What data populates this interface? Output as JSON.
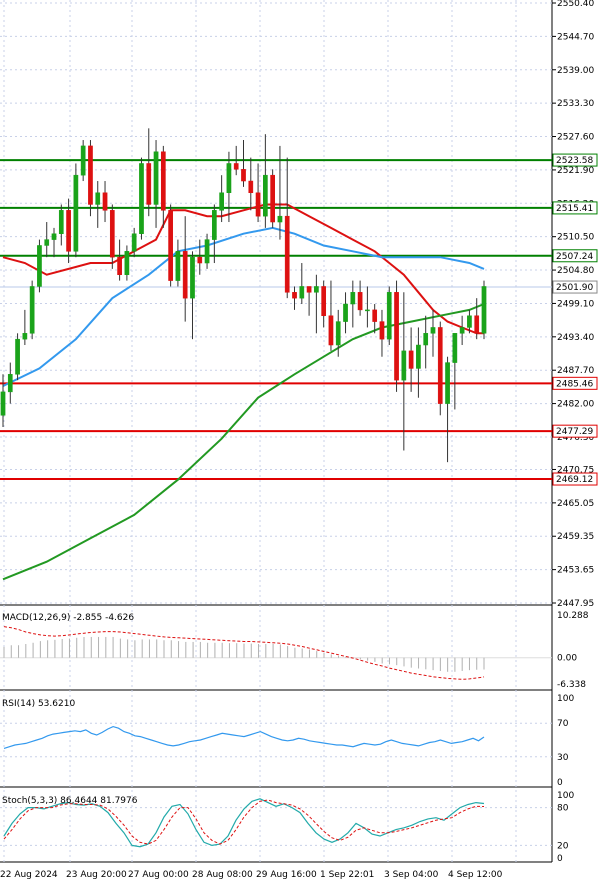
{
  "chart_data": [
    {
      "type": "candlestick",
      "panel": "price",
      "y_ticks": [
        "2550.40",
        "2544.70",
        "2539.00",
        "2533.30",
        "2527.60",
        "2521.90",
        "2516.20",
        "2510.50",
        "2504.80",
        "2499.10",
        "2493.40",
        "2487.70",
        "2482.00",
        "2476.30",
        "2470.75",
        "2465.05",
        "2459.35",
        "2453.65",
        "2447.95"
      ],
      "ylim": [
        2447.95,
        2550.4
      ],
      "x_tick_labels": [
        "22 Aug 2024",
        "23 Aug 20:00",
        "27 Aug 00:00",
        "28 Aug 08:00",
        "29 Aug 16:00",
        "1 Sep 22:01",
        "3 Sep 04:00",
        "4 Sep 12:00"
      ],
      "current_price": "2501.90",
      "levels": [
        {
          "value": 2523.58,
          "label": "2523.58",
          "color": "#008000"
        },
        {
          "value": 2515.41,
          "label": "2515.41",
          "color": "#008000"
        },
        {
          "value": 2507.24,
          "label": "2507.24",
          "color": "#008000"
        },
        {
          "value": 2485.46,
          "label": "2485.46",
          "color": "#e00000"
        },
        {
          "value": 2477.29,
          "label": "2477.29",
          "color": "#e00000"
        },
        {
          "value": 2469.12,
          "label": "2469.12",
          "color": "#e00000"
        }
      ],
      "candles": [
        [
          2480,
          2487,
          2478,
          2484
        ],
        [
          2484,
          2489,
          2482,
          2487
        ],
        [
          2487,
          2494,
          2486,
          2493
        ],
        [
          2493,
          2498,
          2492,
          2494
        ],
        [
          2494,
          2503,
          2493,
          2502
        ],
        [
          2502,
          2510,
          2501,
          2509
        ],
        [
          2509,
          2513,
          2507,
          2510
        ],
        [
          2510,
          2512,
          2507,
          2511
        ],
        [
          2511,
          2516,
          2509,
          2515
        ],
        [
          2515,
          2517,
          2506,
          2508
        ],
        [
          2508,
          2523,
          2507,
          2521
        ],
        [
          2521,
          2527,
          2520,
          2526
        ],
        [
          2526,
          2527,
          2514,
          2516
        ],
        [
          2516,
          2520,
          2512,
          2518
        ],
        [
          2518,
          2520,
          2513,
          2515
        ],
        [
          2515,
          2516,
          2505,
          2507
        ],
        [
          2507,
          2510,
          2503,
          2504
        ],
        [
          2504,
          2509,
          2503,
          2508
        ],
        [
          2508,
          2512,
          2507,
          2511
        ],
        [
          2511,
          2524,
          2510,
          2523
        ],
        [
          2523,
          2529,
          2514,
          2516
        ],
        [
          2516,
          2527,
          2512,
          2525
        ],
        [
          2525,
          2526,
          2512,
          2515
        ],
        [
          2515,
          2516,
          2502,
          2503
        ],
        [
          2503,
          2510,
          2502,
          2508
        ],
        [
          2508,
          2514,
          2496,
          2500
        ],
        [
          2500,
          2508,
          2493,
          2507
        ],
        [
          2507,
          2510,
          2504,
          2506
        ],
        [
          2506,
          2511,
          2505,
          2510
        ],
        [
          2510,
          2516,
          2506,
          2515
        ],
        [
          2515,
          2521,
          2513,
          2518
        ],
        [
          2518,
          2525,
          2513,
          2523
        ],
        [
          2523,
          2526,
          2521,
          2522
        ],
        [
          2522,
          2527,
          2519,
          2520
        ],
        [
          2520,
          2524,
          2515,
          2518
        ],
        [
          2518,
          2523,
          2513,
          2514
        ],
        [
          2514,
          2528,
          2512,
          2521
        ],
        [
          2521,
          2522,
          2512,
          2513
        ],
        [
          2513,
          2526,
          2510,
          2514
        ],
        [
          2514,
          2524,
          2500,
          2501
        ],
        [
          2501,
          2502,
          2498,
          2500
        ],
        [
          2500,
          2506,
          2499,
          2502
        ],
        [
          2502,
          2502,
          2497,
          2501
        ],
        [
          2501,
          2504,
          2494,
          2502
        ],
        [
          2502,
          2503,
          2495,
          2497
        ],
        [
          2497,
          2503,
          2491,
          2492
        ],
        [
          2492,
          2498,
          2490,
          2496
        ],
        [
          2496,
          2501,
          2494,
          2499
        ],
        [
          2499,
          2503,
          2495,
          2501
        ],
        [
          2501,
          2503,
          2497,
          2498
        ],
        [
          2498,
          2502,
          2495,
          2498
        ],
        [
          2498,
          2499,
          2494,
          2496
        ],
        [
          2496,
          2498,
          2490,
          2493
        ],
        [
          2493,
          2502,
          2492,
          2501
        ],
        [
          2501,
          2503,
          2484,
          2486
        ],
        [
          2486,
          2501,
          2474,
          2491
        ],
        [
          2491,
          2495,
          2484,
          2488
        ],
        [
          2488,
          2495,
          2483,
          2492
        ],
        [
          2492,
          2497,
          2488,
          2494
        ],
        [
          2494,
          2498,
          2490,
          2495
        ],
        [
          2495,
          2496,
          2480,
          2482
        ],
        [
          2482,
          2490,
          2472,
          2489
        ],
        [
          2489,
          2494,
          2481,
          2494
        ],
        [
          2494,
          2497,
          2492,
          2495
        ],
        [
          2495,
          2498,
          2494,
          2497
        ],
        [
          2497,
          2500,
          2493,
          2494
        ],
        [
          2494,
          2503,
          2493,
          2502
        ]
      ],
      "series": [
        {
          "color": "#dd1111",
          "points": [
            [
              0,
              2507
            ],
            [
              3,
              2506
            ],
            [
              6,
              2504
            ],
            [
              9,
              2505
            ],
            [
              12,
              2506
            ],
            [
              15,
              2506
            ],
            [
              18,
              2508
            ],
            [
              21,
              2510
            ],
            [
              23,
              2515
            ],
            [
              25,
              2515
            ],
            [
              28,
              2514
            ],
            [
              30,
              2514
            ],
            [
              33,
              2515
            ],
            [
              36,
              2516
            ],
            [
              39,
              2516
            ],
            [
              42,
              2514
            ],
            [
              45,
              2512
            ],
            [
              48,
              2510
            ],
            [
              51,
              2508
            ],
            [
              53,
              2506
            ],
            [
              55,
              2504
            ],
            [
              57,
              2501
            ],
            [
              59,
              2498
            ],
            [
              61,
              2496
            ],
            [
              63,
              2495
            ],
            [
              65,
              2494
            ],
            [
              66,
              2494
            ]
          ]
        },
        {
          "color": "#3399ee",
          "points": [
            [
              0,
              2485
            ],
            [
              5,
              2488
            ],
            [
              10,
              2493
            ],
            [
              15,
              2500
            ],
            [
              20,
              2504
            ],
            [
              24,
              2508
            ],
            [
              28,
              2509
            ],
            [
              33,
              2511
            ],
            [
              37,
              2512
            ],
            [
              40,
              2511
            ],
            [
              44,
              2509
            ],
            [
              48,
              2508
            ],
            [
              52,
              2507
            ],
            [
              56,
              2507
            ],
            [
              60,
              2507
            ],
            [
              64,
              2506
            ],
            [
              66,
              2505
            ]
          ]
        },
        {
          "color": "#229922",
          "points": [
            [
              0,
              2452
            ],
            [
              6,
              2455
            ],
            [
              12,
              2459
            ],
            [
              18,
              2463
            ],
            [
              24,
              2469
            ],
            [
              30,
              2476
            ],
            [
              35,
              2483
            ],
            [
              40,
              2487
            ],
            [
              44,
              2490
            ],
            [
              48,
              2493
            ],
            [
              52,
              2495
            ],
            [
              56,
              2496
            ],
            [
              60,
              2497
            ],
            [
              64,
              2498
            ],
            [
              66,
              2499
            ]
          ]
        }
      ]
    },
    {
      "type": "histogram",
      "panel": "macd",
      "label": "MACD(12,26,9) -2.855 -4.626",
      "y_ticks": [
        "10.288",
        "0.00",
        "-6.338"
      ],
      "ylim": [
        -6.338,
        10.288
      ],
      "histogram": [
        2.6,
        3.0,
        3.0,
        3.3,
        3.6,
        4.0,
        4.2,
        4.3,
        4.5,
        4.6,
        4.8,
        5.0,
        5.0,
        5.0,
        5.0,
        5.0,
        4.6,
        4.4,
        4.2,
        4.4,
        4.4,
        4.4,
        4.2,
        4.2,
        4.0,
        3.8,
        3.8,
        3.8,
        3.6,
        3.6,
        3.6,
        3.5,
        3.5,
        3.4,
        3.4,
        3.3,
        3.3,
        3.3,
        3.2,
        2.8,
        2.4,
        2.2,
        2.0,
        1.6,
        1.2,
        0.8,
        0.4,
        0.2,
        0.0,
        -0.4,
        -0.7,
        -1.0,
        -1.4,
        -1.6,
        -1.8,
        -2.1,
        -2.4,
        -2.6,
        -2.8,
        -3.0,
        -3.2,
        -3.4,
        -3.4,
        -3.2,
        -3.0,
        -2.9,
        -2.855
      ],
      "signal": [
        7.5,
        7.2,
        6.8,
        6.2,
        5.8,
        5.5,
        5.3,
        5.2,
        5.3,
        5.5,
        5.7,
        5.9,
        6.1,
        6.2,
        6.3,
        6.3,
        6.2,
        6.0,
        5.8,
        5.6,
        5.4,
        5.2,
        5.0,
        4.9,
        4.8,
        4.7,
        4.6,
        4.5,
        4.4,
        4.3,
        4.2,
        4.1,
        4.0,
        3.9,
        3.9,
        3.8,
        3.7,
        3.6,
        3.5,
        3.3,
        3.0,
        2.7,
        2.3,
        1.9,
        1.5,
        1.1,
        0.7,
        0.3,
        -0.1,
        -0.6,
        -1.1,
        -1.6,
        -2.0,
        -2.5,
        -2.9,
        -3.3,
        -3.7,
        -4.0,
        -4.3,
        -4.6,
        -4.8,
        -5.0,
        -5.1,
        -5.2,
        -5.1,
        -4.9,
        -4.626
      ]
    },
    {
      "type": "line",
      "panel": "rsi",
      "label": "RSI(14) 53.6210",
      "y_ticks": [
        "100",
        "70",
        "30",
        "0"
      ],
      "ylim": [
        0,
        100
      ],
      "values": [
        40,
        42,
        44,
        45,
        46,
        48,
        50,
        52,
        55,
        57,
        58,
        59,
        60,
        61,
        60,
        62,
        58,
        56,
        59,
        63,
        66,
        64,
        60,
        58,
        55,
        54,
        52,
        50,
        48,
        46,
        44,
        43,
        44,
        46,
        48,
        49,
        50,
        52,
        54,
        56,
        58,
        57,
        56,
        55,
        54,
        56,
        58,
        60,
        57,
        54,
        52,
        50,
        49,
        50,
        52,
        51,
        49,
        48,
        47,
        46,
        45,
        44,
        44,
        43,
        42,
        44,
        46,
        45,
        44,
        45,
        48,
        50,
        48,
        46,
        45,
        44,
        43,
        45,
        47,
        48,
        50,
        48,
        46,
        47,
        48,
        50,
        52,
        49,
        53.621
      ]
    },
    {
      "type": "line",
      "panel": "stoch",
      "label": "Stoch(5,3,3) 86.4644 81.7976",
      "y_ticks": [
        "100",
        "80",
        "20",
        "0"
      ],
      "ylim": [
        0,
        100
      ],
      "k": [
        35,
        55,
        70,
        80,
        80,
        78,
        82,
        86,
        88,
        85,
        84,
        86,
        82,
        72,
        55,
        40,
        20,
        18,
        22,
        40,
        65,
        82,
        85,
        70,
        45,
        25,
        20,
        22,
        35,
        60,
        78,
        90,
        94,
        88,
        82,
        86,
        80,
        72,
        55,
        40,
        30,
        25,
        30,
        40,
        55,
        48,
        38,
        35,
        40,
        45,
        48,
        52,
        58,
        62,
        64,
        60,
        70,
        80,
        85,
        88,
        86.4644
      ],
      "d": [
        30,
        45,
        62,
        75,
        80,
        80,
        80,
        84,
        86,
        86,
        85,
        85,
        84,
        78,
        66,
        52,
        35,
        25,
        22,
        28,
        45,
        65,
        80,
        80,
        62,
        40,
        28,
        22,
        28,
        45,
        65,
        80,
        90,
        92,
        88,
        86,
        84,
        78,
        68,
        55,
        42,
        32,
        28,
        33,
        44,
        48,
        44,
        40,
        40,
        42,
        45,
        48,
        52,
        56,
        60,
        62,
        64,
        72,
        78,
        82,
        81.7976
      ]
    }
  ]
}
